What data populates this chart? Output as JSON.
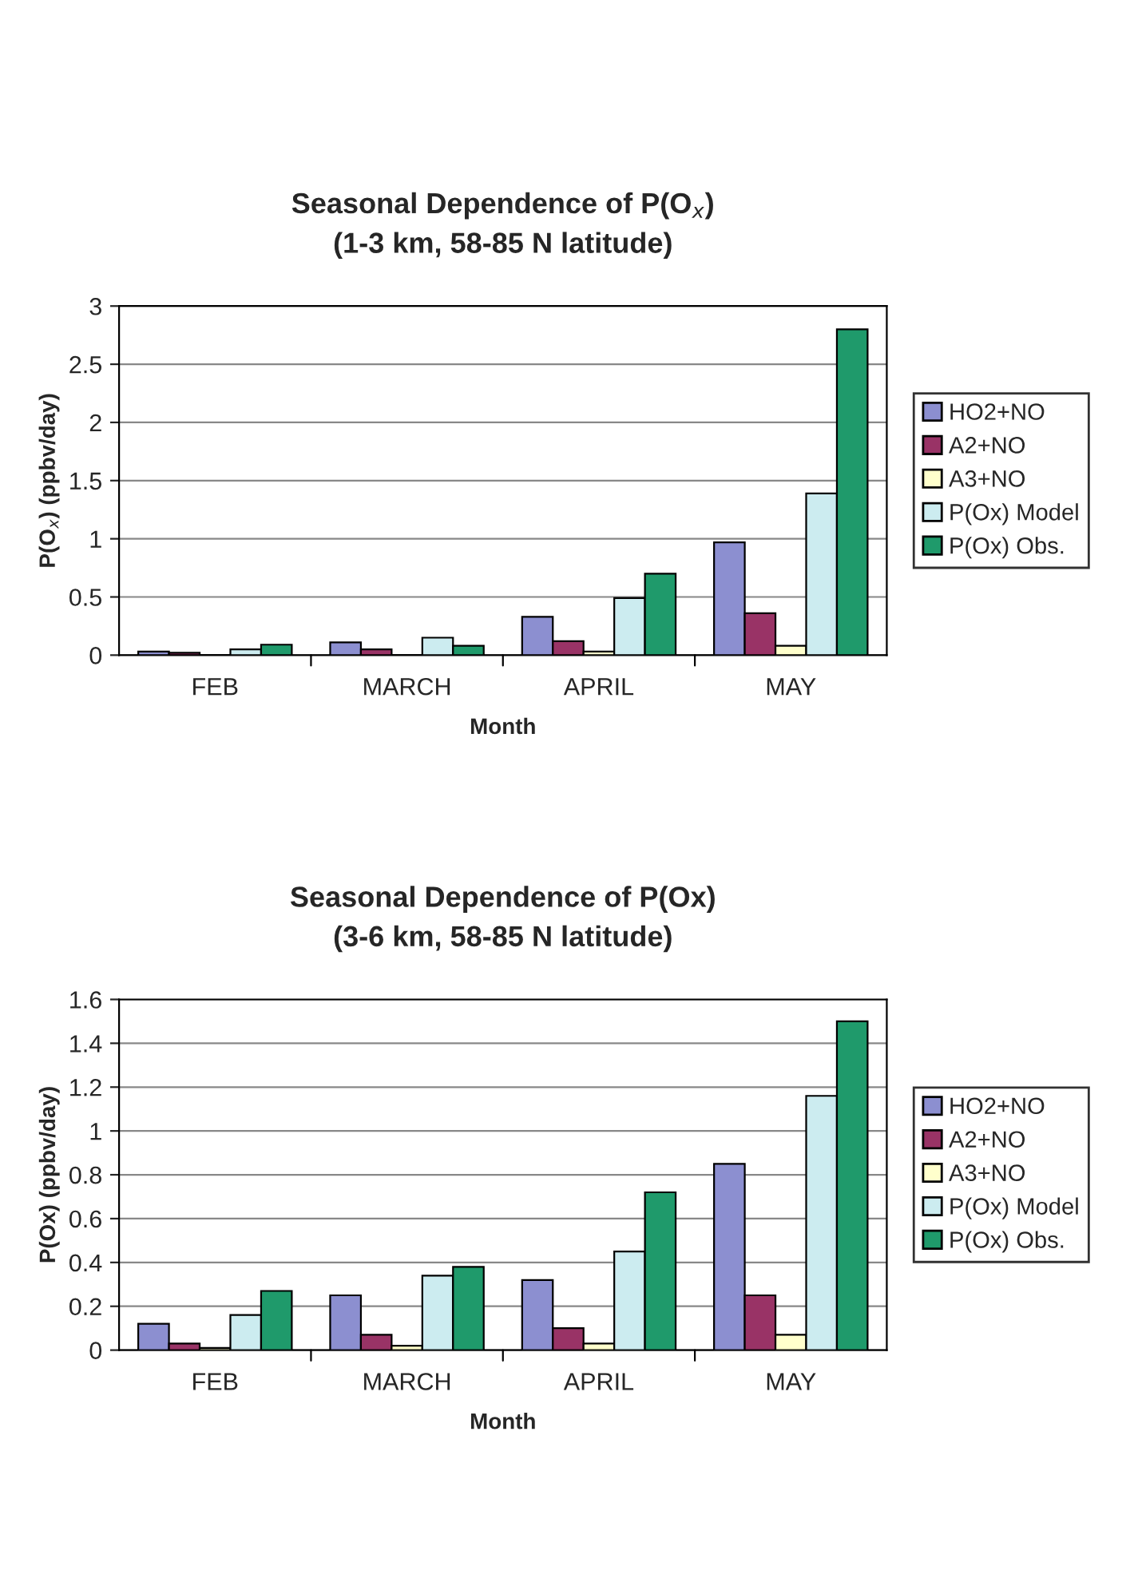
{
  "chart_data": [
    {
      "type": "bar",
      "title": "Seasonal Dependence of P(O$_{x}$)\n(1-3 km, 58-85 N latitude)",
      "xlabel": "Month",
      "ylabel": "P(O$_{x}$) (ppbv/day)",
      "categories": [
        "FEB",
        "MARCH",
        "APRIL",
        "MAY"
      ],
      "series": [
        {
          "name": "HO2+NO",
          "color": "#8c8fd0",
          "values": [
            0.03,
            0.11,
            0.33,
            0.97
          ]
        },
        {
          "name": "A2+NO",
          "color": "#993366",
          "values": [
            0.02,
            0.05,
            0.12,
            0.36
          ]
        },
        {
          "name": "A3+NO",
          "color": "#ffffcc",
          "values": [
            0.0,
            0.0,
            0.03,
            0.08
          ]
        },
        {
          "name": "P(Ox) Model",
          "color": "#ccecf0",
          "values": [
            0.05,
            0.15,
            0.49,
            1.39
          ]
        },
        {
          "name": "P(Ox) Obs.",
          "color": "#1f9a6b",
          "values": [
            0.09,
            0.08,
            0.7,
            2.8
          ]
        }
      ],
      "ylim": [
        0,
        3
      ],
      "yticks": [
        0,
        0.5,
        1,
        1.5,
        2,
        2.5,
        3
      ],
      "grid": "y",
      "legend": "right"
    },
    {
      "type": "bar",
      "title": "Seasonal Dependence of P(Ox)\n(3-6 km, 58-85 N latitude)",
      "xlabel": "Month",
      "ylabel": "P(Ox) (ppbv/day)",
      "categories": [
        "FEB",
        "MARCH",
        "APRIL",
        "MAY"
      ],
      "series": [
        {
          "name": "HO2+NO",
          "color": "#8c8fd0",
          "values": [
            0.12,
            0.25,
            0.32,
            0.85
          ]
        },
        {
          "name": "A2+NO",
          "color": "#993366",
          "values": [
            0.03,
            0.07,
            0.1,
            0.25
          ]
        },
        {
          "name": "A3+NO",
          "color": "#ffffcc",
          "values": [
            0.01,
            0.02,
            0.03,
            0.07
          ]
        },
        {
          "name": "P(Ox) Model",
          "color": "#ccecf0",
          "values": [
            0.16,
            0.34,
            0.45,
            1.16
          ]
        },
        {
          "name": "P(Ox) Obs.",
          "color": "#1f9a6b",
          "values": [
            0.27,
            0.38,
            0.72,
            1.5
          ]
        }
      ],
      "ylim": [
        0,
        1.6
      ],
      "yticks": [
        0,
        0.2,
        0.4,
        0.6,
        0.8,
        1,
        1.2,
        1.4,
        1.6
      ],
      "grid": "y",
      "legend": "right"
    }
  ]
}
